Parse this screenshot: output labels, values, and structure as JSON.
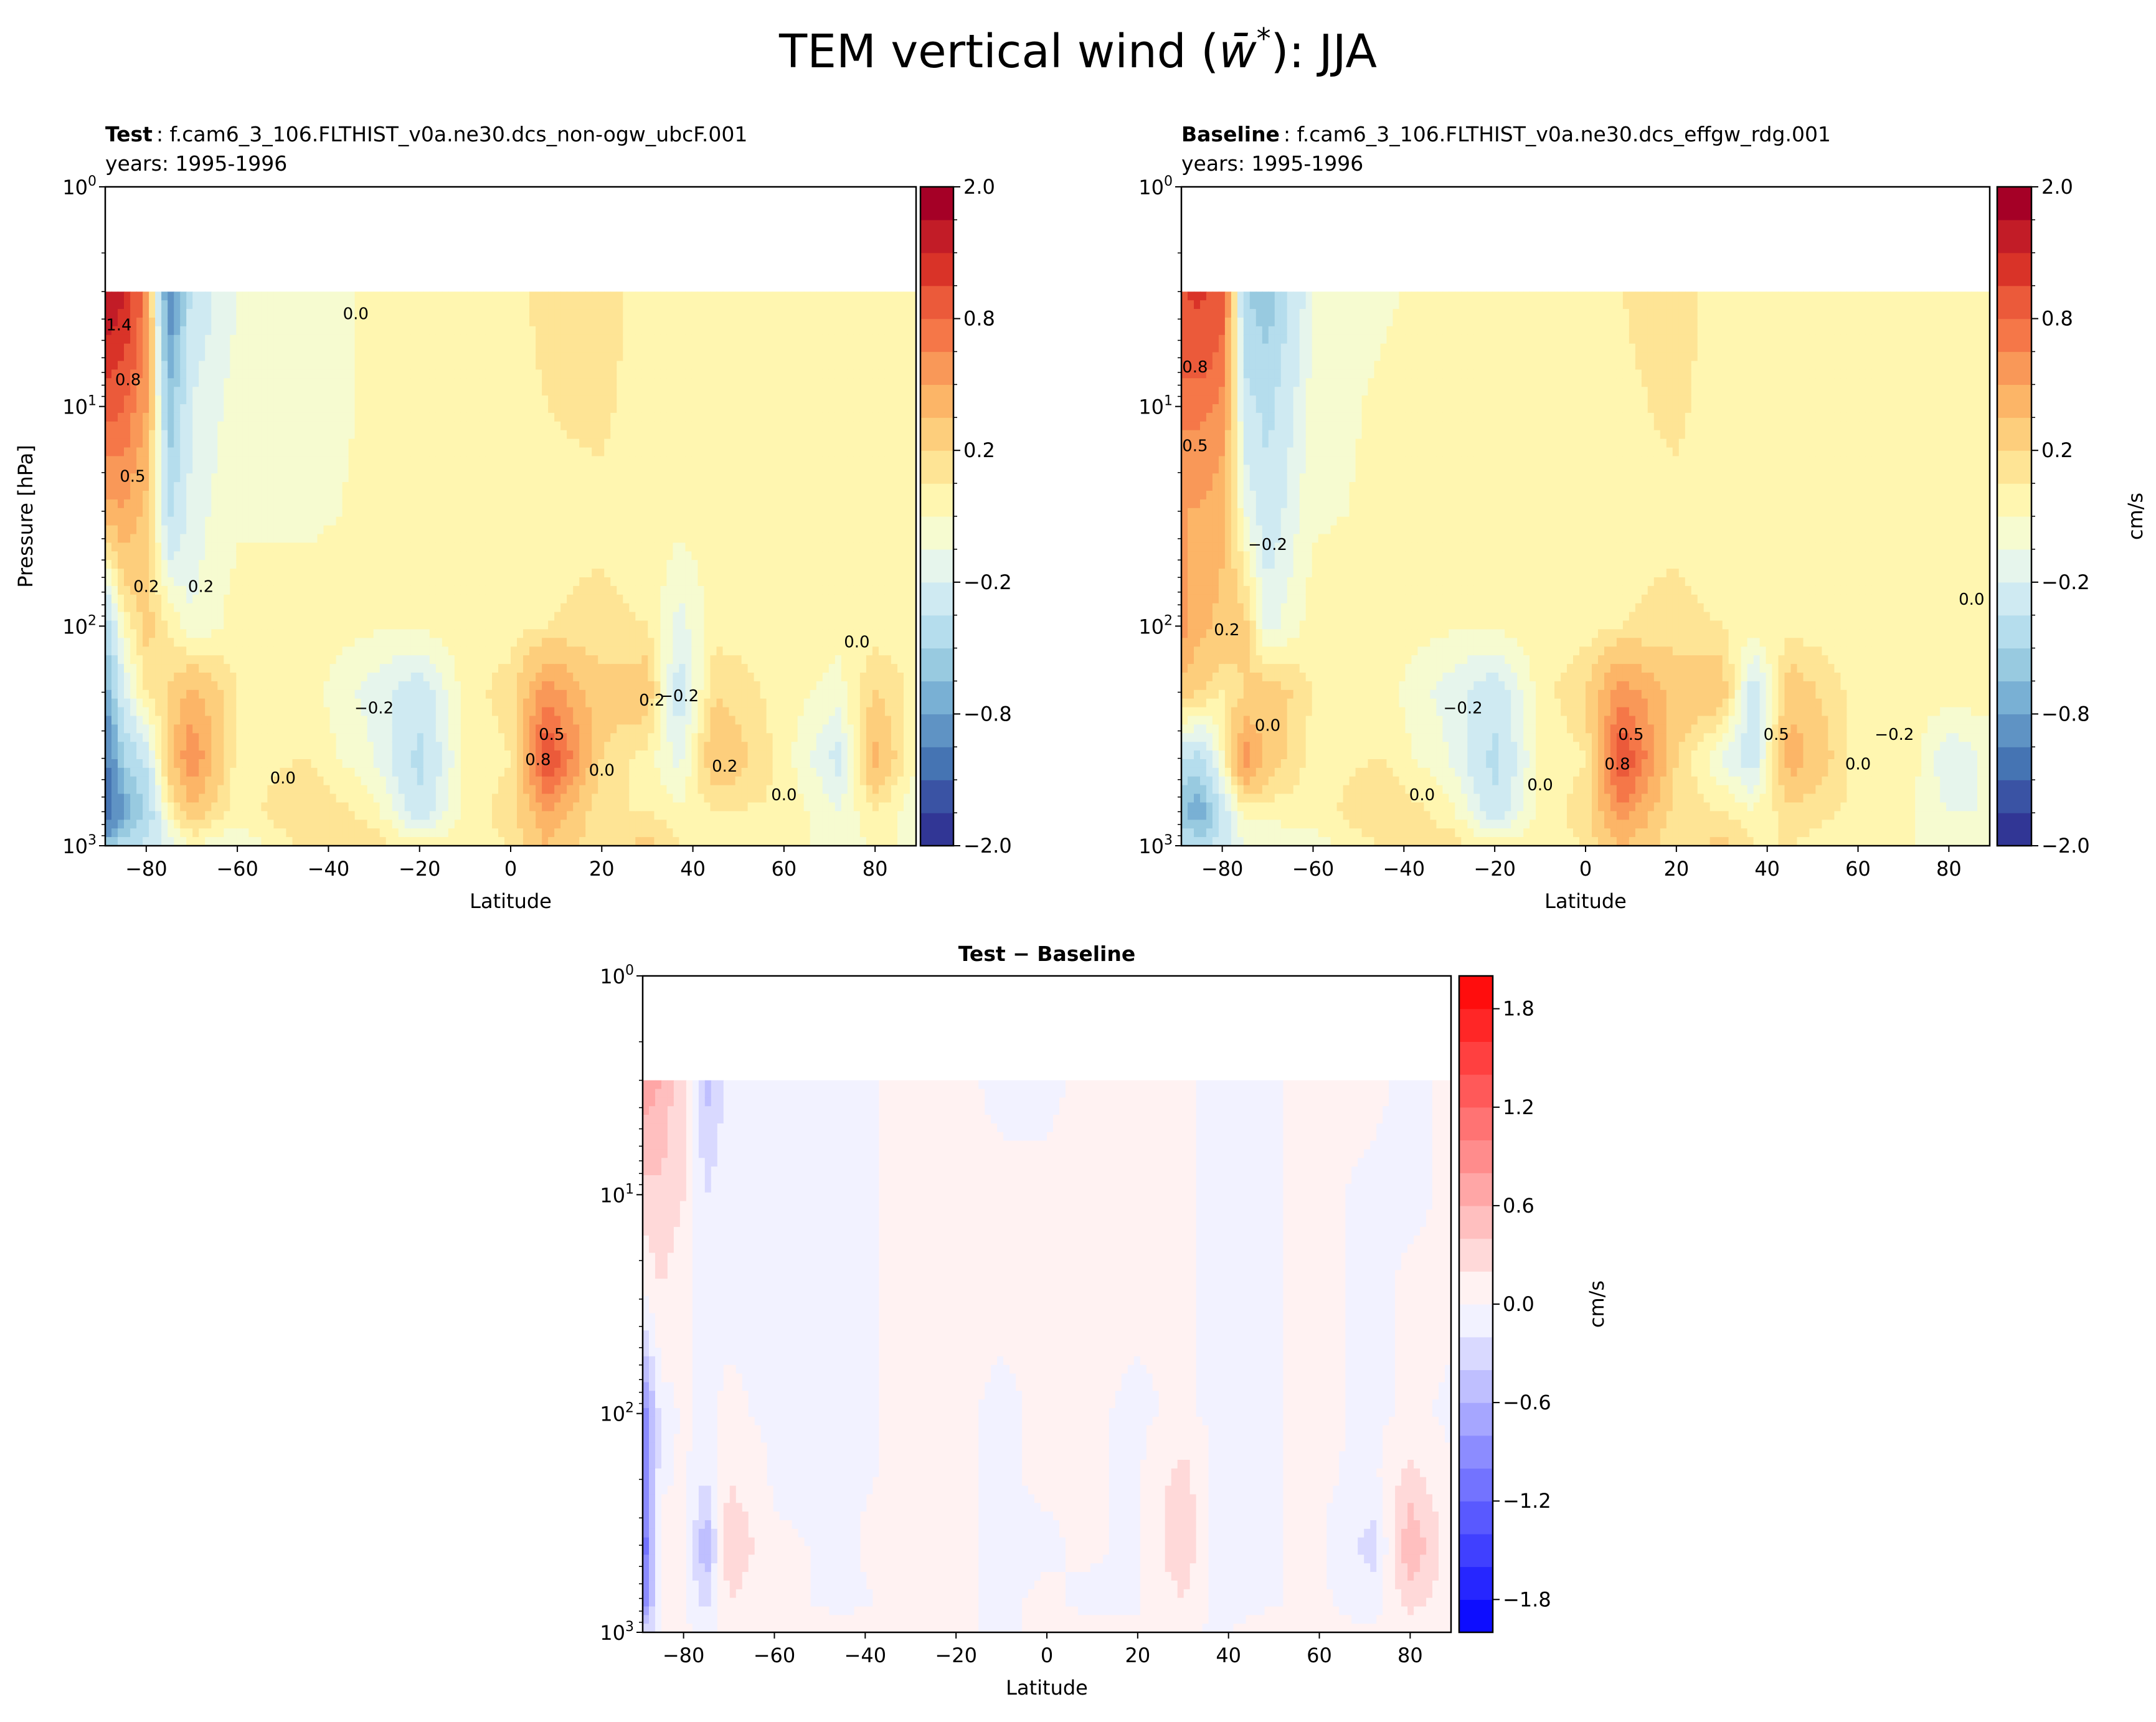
{
  "figure": {
    "title_main": "TEM vertical wind (",
    "title_symbol": "w̄",
    "title_sup": "*",
    "title_end": "): JJA"
  },
  "chart_data": [
    {
      "type": "heatmap",
      "title_bold": "Test",
      "title_rest": ": f.cam6_3_106.FLTHIST_v0a.ne30.dcs_non-ogw_ubcF.001",
      "subtitle": "years: 1995-1996",
      "xlabel": "Latitude",
      "ylabel": "Pressure [hPa]",
      "xlim": [
        -89,
        89
      ],
      "ylim": [
        1000,
        1
      ],
      "yscale": "log",
      "xticks": [
        -80,
        -60,
        -40,
        -20,
        0,
        20,
        40,
        60,
        80
      ],
      "xtick_labels": [
        "−80",
        "−60",
        "−40",
        "−20",
        "0",
        "20",
        "40",
        "60",
        "80"
      ],
      "yticks": [
        {
          "value": 1,
          "base": "10",
          "exp": "0"
        },
        {
          "value": 10,
          "base": "10",
          "exp": "1"
        },
        {
          "value": 100,
          "base": "10",
          "exp": "2"
        },
        {
          "value": 1000,
          "base": "10",
          "exp": "3"
        }
      ],
      "colorbar": {
        "colormap": "RdYlBu_r",
        "label": "",
        "levels": [
          -2.0,
          -1.7,
          -1.4,
          -1.1,
          -0.8,
          -0.65,
          -0.5,
          -0.35,
          -0.2,
          -0.1,
          0.0,
          0.1,
          0.2,
          0.35,
          0.5,
          0.65,
          0.8,
          1.1,
          1.4,
          1.7,
          2.0
        ],
        "colors": [
          "#313695",
          "#3a53a4",
          "#4574b3",
          "#5f93c4",
          "#79b0d4",
          "#98cae0",
          "#b5dded",
          "#cfeaf2",
          "#e6f5ec",
          "#f6fbd0",
          "#fff6b0",
          "#fee495",
          "#fdce7c",
          "#fcb567",
          "#f99858",
          "#f57748",
          "#eb5a3a",
          "#d93328",
          "#c21c27",
          "#a50026"
        ],
        "uniform_spacing": true,
        "ticks": [
          2.0,
          0.8,
          0.2,
          -0.2,
          -0.8,
          -2.0
        ],
        "tick_labels": [
          "2.0",
          "0.8",
          "0.2",
          "−0.2",
          "−0.8",
          "−2.0"
        ]
      },
      "grid": {
        "lat": [
          -90,
          -85,
          -80,
          -75,
          -70,
          -60,
          -45,
          -30,
          -20,
          -10,
          0,
          8,
          20,
          30,
          37,
          45,
          60,
          72,
          80,
          90
        ],
        "pressure": [
          3,
          10,
          30,
          100,
          200,
          400,
          700,
          1000
        ],
        "values": [
          [
            1.8,
            1.5,
            0.6,
            -1.0,
            -0.3,
            -0.1,
            -0.05,
            0.02,
            0.05,
            0.05,
            0.05,
            0.15,
            0.15,
            0.05,
            0.05,
            0.05,
            0.05,
            0.05,
            0.08,
            0.08
          ],
          [
            0.9,
            0.8,
            0.5,
            -0.6,
            -0.2,
            -0.05,
            -0.05,
            0.02,
            0.05,
            0.05,
            0.05,
            0.1,
            0.12,
            0.05,
            0.05,
            0.05,
            0.05,
            0.05,
            0.08,
            0.08
          ],
          [
            0.4,
            0.5,
            0.3,
            -0.4,
            -0.15,
            -0.02,
            -0.02,
            0.02,
            0.05,
            0.05,
            0.05,
            0.08,
            0.08,
            0.05,
            0.05,
            0.05,
            0.05,
            0.05,
            0.08,
            0.08
          ],
          [
            -0.6,
            0.0,
            0.25,
            0.1,
            -0.1,
            0.05,
            0.05,
            0.02,
            0.02,
            0.05,
            0.05,
            0.1,
            0.12,
            0.1,
            -0.15,
            0.05,
            0.05,
            0.05,
            0.05,
            0.05
          ],
          [
            -0.9,
            -0.2,
            0.1,
            0.2,
            0.4,
            0.1,
            0.05,
            -0.15,
            -0.3,
            0.05,
            0.15,
            0.6,
            0.25,
            0.3,
            -0.3,
            0.2,
            0.05,
            -0.05,
            0.2,
            0.05
          ],
          [
            -1.3,
            -0.5,
            -0.3,
            0.3,
            0.65,
            0.05,
            0.1,
            -0.1,
            -0.4,
            0.02,
            0.1,
            1.0,
            0.2,
            0.05,
            -0.15,
            0.35,
            0.05,
            -0.25,
            0.4,
            -0.05
          ],
          [
            -1.6,
            -0.8,
            -0.5,
            0.05,
            0.3,
            0.05,
            0.2,
            0.05,
            -0.3,
            0.05,
            0.15,
            0.5,
            0.1,
            0.1,
            0.02,
            0.1,
            0.08,
            -0.1,
            0.1,
            -0.1
          ],
          [
            -0.6,
            -0.4,
            -0.3,
            -0.2,
            0.0,
            -0.1,
            0.15,
            0.15,
            0.05,
            0.05,
            0.1,
            0.35,
            0.1,
            0.25,
            0.1,
            0.1,
            0.05,
            -0.05,
            0.0,
            0.0
          ]
        ]
      },
      "contour_labels": [
        {
          "lat": -86,
          "p": 4.5,
          "text": "1.4"
        },
        {
          "lat": -84,
          "p": 8,
          "text": "0.8"
        },
        {
          "lat": -83,
          "p": 22,
          "text": "0.5"
        },
        {
          "lat": -34,
          "p": 4,
          "text": "0.0"
        },
        {
          "lat": -80,
          "p": 70,
          "text": "0.2"
        },
        {
          "lat": -68,
          "p": 70,
          "text": "0.2"
        },
        {
          "lat": -30,
          "p": 250,
          "text": "−0.2"
        },
        {
          "lat": 9,
          "p": 330,
          "text": "0.5"
        },
        {
          "lat": 6,
          "p": 430,
          "text": "0.8"
        },
        {
          "lat": 20,
          "p": 480,
          "text": "0.0"
        },
        {
          "lat": 31,
          "p": 230,
          "text": "0.2"
        },
        {
          "lat": 37,
          "p": 220,
          "text": "−0.2"
        },
        {
          "lat": 76,
          "p": 125,
          "text": "0.0"
        },
        {
          "lat": 47,
          "p": 460,
          "text": "0.2"
        },
        {
          "lat": 60,
          "p": 620,
          "text": "0.0"
        },
        {
          "lat": -50,
          "p": 520,
          "text": "0.0"
        }
      ]
    },
    {
      "type": "heatmap",
      "title_bold": "Baseline",
      "title_rest": ": f.cam6_3_106.FLTHIST_v0a.ne30.dcs_effgw_rdg.001",
      "subtitle": "years: 1995-1996",
      "xlabel": "Latitude",
      "xlim": [
        -89,
        89
      ],
      "ylim": [
        1000,
        1
      ],
      "yscale": "log",
      "xticks": [
        -80,
        -60,
        -40,
        -20,
        0,
        20,
        40,
        60,
        80
      ],
      "xtick_labels": [
        "−80",
        "−60",
        "−40",
        "−20",
        "0",
        "20",
        "40",
        "60",
        "80"
      ],
      "yticks": [
        {
          "value": 1,
          "base": "10",
          "exp": "0"
        },
        {
          "value": 10,
          "base": "10",
          "exp": "1"
        },
        {
          "value": 100,
          "base": "10",
          "exp": "2"
        },
        {
          "value": 1000,
          "base": "10",
          "exp": "3"
        }
      ],
      "colorbar": {
        "colormap": "RdYlBu_r",
        "label": "cm/s",
        "levels": [
          -2.0,
          -1.7,
          -1.4,
          -1.1,
          -0.8,
          -0.65,
          -0.5,
          -0.35,
          -0.2,
          -0.1,
          0.0,
          0.1,
          0.2,
          0.35,
          0.5,
          0.65,
          0.8,
          1.1,
          1.4,
          1.7,
          2.0
        ],
        "colors": [
          "#313695",
          "#3a53a4",
          "#4574b3",
          "#5f93c4",
          "#79b0d4",
          "#98cae0",
          "#b5dded",
          "#cfeaf2",
          "#e6f5ec",
          "#f6fbd0",
          "#fff6b0",
          "#fee495",
          "#fdce7c",
          "#fcb567",
          "#f99858",
          "#f57748",
          "#eb5a3a",
          "#d93328",
          "#c21c27",
          "#a50026"
        ],
        "uniform_spacing": true,
        "ticks": [
          2.0,
          0.8,
          0.2,
          -0.2,
          -0.8,
          -2.0
        ],
        "tick_labels": [
          "2.0",
          "0.8",
          "0.2",
          "−0.2",
          "−0.8",
          "−2.0"
        ]
      },
      "grid": {
        "lat": [
          -90,
          -85,
          -80,
          -75,
          -70,
          -60,
          -45,
          -30,
          -20,
          -10,
          0,
          8,
          20,
          30,
          37,
          45,
          60,
          72,
          80,
          90
        ],
        "pressure": [
          3,
          10,
          30,
          100,
          200,
          400,
          700,
          1000
        ],
        "values": [
          [
            1.0,
            1.2,
            0.9,
            -0.5,
            -0.6,
            -0.1,
            -0.02,
            0.05,
            0.05,
            0.02,
            0.02,
            0.1,
            0.15,
            0.05,
            0.02,
            0.05,
            0.05,
            0.05,
            0.05,
            0.05
          ],
          [
            0.7,
            0.7,
            0.6,
            -0.3,
            -0.4,
            -0.05,
            0.02,
            0.05,
            0.05,
            0.05,
            0.05,
            0.08,
            0.12,
            0.05,
            0.05,
            0.05,
            0.05,
            0.05,
            0.05,
            0.05
          ],
          [
            0.5,
            0.5,
            0.4,
            -0.1,
            -0.3,
            -0.02,
            0.02,
            0.05,
            0.05,
            0.05,
            0.05,
            0.08,
            0.08,
            0.05,
            0.05,
            0.05,
            0.05,
            0.05,
            0.05,
            0.05
          ],
          [
            0.6,
            0.4,
            0.3,
            0.25,
            -0.15,
            0.05,
            0.05,
            0.02,
            0.02,
            0.05,
            0.05,
            0.1,
            0.12,
            0.1,
            0.05,
            0.05,
            0.05,
            0.05,
            0.05,
            0.05
          ],
          [
            0.3,
            0.2,
            0.1,
            0.2,
            0.3,
            0.1,
            0.05,
            -0.15,
            -0.3,
            0.05,
            0.2,
            0.6,
            0.3,
            0.3,
            -0.3,
            0.3,
            0.05,
            0.05,
            0.05,
            0.05
          ],
          [
            -0.3,
            -0.4,
            0.0,
            0.6,
            0.3,
            0.05,
            0.1,
            -0.1,
            -0.4,
            0.02,
            0.1,
            1.0,
            0.2,
            -0.1,
            -0.3,
            0.45,
            0.05,
            0.05,
            -0.2,
            -0.05
          ],
          [
            -0.6,
            -0.8,
            -0.3,
            0.05,
            0.05,
            0.05,
            0.2,
            0.05,
            -0.3,
            0.05,
            0.15,
            0.6,
            0.15,
            0.1,
            0.02,
            0.15,
            0.08,
            0.0,
            -0.1,
            -0.1
          ],
          [
            -0.3,
            -0.4,
            -0.3,
            -0.1,
            -0.1,
            -0.05,
            0.1,
            0.15,
            0.05,
            0.05,
            0.1,
            0.35,
            0.1,
            0.25,
            0.1,
            0.1,
            0.05,
            0.0,
            0.0,
            0.0
          ]
        ]
      },
      "contour_labels": [
        {
          "lat": -86,
          "p": 7,
          "text": "0.8"
        },
        {
          "lat": -86,
          "p": 16,
          "text": "0.5"
        },
        {
          "lat": -70,
          "p": 45,
          "text": "−0.2"
        },
        {
          "lat": -79,
          "p": 110,
          "text": "0.2"
        },
        {
          "lat": 85,
          "p": 80,
          "text": "0.0"
        },
        {
          "lat": -27,
          "p": 250,
          "text": "−0.2"
        },
        {
          "lat": 10,
          "p": 330,
          "text": "0.5"
        },
        {
          "lat": 7,
          "p": 450,
          "text": "0.8"
        },
        {
          "lat": -10,
          "p": 560,
          "text": "0.0"
        },
        {
          "lat": 60,
          "p": 450,
          "text": "0.0"
        },
        {
          "lat": 68,
          "p": 330,
          "text": "−0.2"
        },
        {
          "lat": -70,
          "p": 300,
          "text": "0.0"
        },
        {
          "lat": 42,
          "p": 330,
          "text": "0.5"
        },
        {
          "lat": -36,
          "p": 620,
          "text": "0.0"
        }
      ]
    },
    {
      "type": "heatmap",
      "title_bold": "Test − Baseline",
      "xlabel": "Latitude",
      "xlim": [
        -89,
        89
      ],
      "ylim": [
        1000,
        1
      ],
      "yscale": "log",
      "xticks": [
        -80,
        -60,
        -40,
        -20,
        0,
        20,
        40,
        60,
        80
      ],
      "xtick_labels": [
        "−80",
        "−60",
        "−40",
        "−20",
        "0",
        "20",
        "40",
        "60",
        "80"
      ],
      "yticks": [
        {
          "value": 1,
          "base": "10",
          "exp": "0"
        },
        {
          "value": 10,
          "base": "10",
          "exp": "1"
        },
        {
          "value": 100,
          "base": "10",
          "exp": "2"
        },
        {
          "value": 1000,
          "base": "10",
          "exp": "3"
        }
      ],
      "colorbar": {
        "colormap": "bwr",
        "label": "cm/s",
        "levels": [
          -2.0,
          -1.8,
          -1.6,
          -1.4,
          -1.2,
          -1.0,
          -0.8,
          -0.6,
          -0.4,
          -0.2,
          0.0,
          0.2,
          0.4,
          0.6,
          0.8,
          1.0,
          1.2,
          1.4,
          1.6,
          1.8,
          2.0
        ],
        "uniform_spacing": false,
        "ticks": [
          1.8,
          1.2,
          0.6,
          0.0,
          -0.6,
          -1.2,
          -1.8
        ],
        "tick_labels": [
          "1.8",
          "1.2",
          "0.6",
          "0.0",
          "−0.6",
          "−1.2",
          "−1.8"
        ]
      },
      "grid": {
        "lat": [
          -90,
          -85,
          -80,
          -75,
          -70,
          -60,
          -45,
          -30,
          -20,
          -10,
          0,
          8,
          20,
          30,
          37,
          45,
          60,
          72,
          80,
          90
        ],
        "pressure": [
          3,
          10,
          30,
          100,
          200,
          400,
          700,
          1000
        ],
        "values": [
          [
            0.8,
            0.6,
            0.2,
            -0.5,
            -0.1,
            -0.03,
            -0.03,
            0.03,
            0.03,
            -0.03,
            -0.03,
            0.03,
            0.03,
            0.03,
            -0.03,
            -0.03,
            0.03,
            0.03,
            -0.03,
            0.03
          ],
          [
            0.3,
            0.35,
            0.2,
            -0.2,
            -0.05,
            -0.03,
            -0.03,
            0.03,
            0.03,
            0.03,
            0.03,
            0.03,
            0.03,
            0.03,
            -0.03,
            -0.03,
            0.03,
            -0.03,
            -0.03,
            0.03
          ],
          [
            -0.1,
            0.2,
            0.05,
            -0.05,
            -0.03,
            -0.03,
            -0.03,
            0.03,
            0.03,
            0.03,
            0.03,
            0.03,
            0.03,
            0.03,
            -0.03,
            -0.03,
            0.03,
            -0.03,
            0.03,
            0.03
          ],
          [
            -1.2,
            -0.1,
            0.03,
            -0.03,
            0.03,
            -0.03,
            -0.03,
            0.03,
            0.03,
            -0.03,
            0.03,
            0.03,
            -0.03,
            0.03,
            -0.03,
            -0.03,
            0.03,
            -0.03,
            0.03,
            -0.03
          ],
          [
            -1.3,
            -0.05,
            0.05,
            -0.2,
            0.2,
            -0.03,
            -0.03,
            0.03,
            0.03,
            -0.03,
            0.03,
            0.03,
            -0.03,
            0.3,
            -0.05,
            -0.03,
            0.03,
            -0.05,
            0.3,
            -0.03
          ],
          [
            -1.6,
            0.1,
            0.05,
            -0.6,
            0.4,
            0.03,
            -0.03,
            0.1,
            0.03,
            -0.03,
            -0.03,
            0.03,
            -0.03,
            0.4,
            -0.15,
            -0.03,
            0.03,
            -0.3,
            0.6,
            0.03
          ],
          [
            -1.4,
            0.05,
            0.03,
            -0.3,
            0.2,
            0.03,
            -0.03,
            0.03,
            0.03,
            -0.03,
            0.03,
            -0.03,
            -0.03,
            0.2,
            -0.05,
            -0.03,
            0.03,
            -0.1,
            0.3,
            0.03
          ],
          [
            -0.5,
            0.03,
            0.03,
            -0.03,
            0.03,
            0.03,
            0.03,
            0.03,
            0.03,
            -0.03,
            0.03,
            0.03,
            0.03,
            0.03,
            -0.03,
            0.03,
            0.03,
            0.03,
            0.03,
            0.03
          ]
        ]
      },
      "contour_labels": []
    }
  ]
}
